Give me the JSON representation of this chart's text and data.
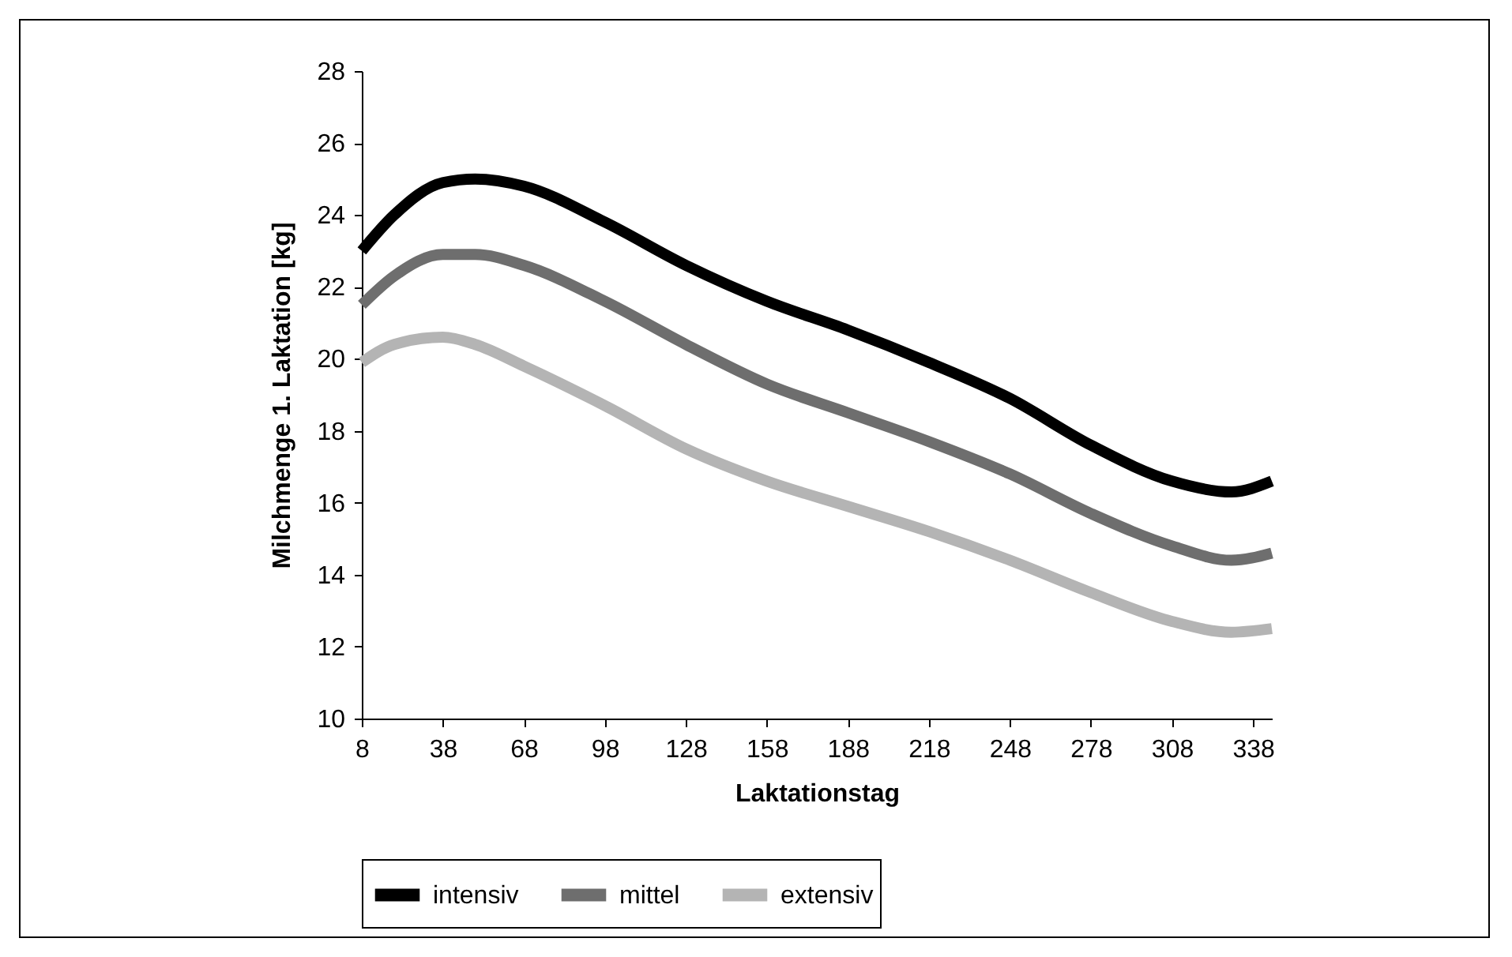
{
  "chart_data": {
    "type": "line",
    "xlabel": "Laktationstag",
    "ylabel": "Milchmenge 1. Laktation [kg]",
    "x": [
      8,
      20,
      38,
      50,
      68,
      98,
      128,
      158,
      188,
      218,
      248,
      278,
      308,
      330,
      345
    ],
    "series": [
      {
        "name": "intensiv",
        "color": "#000000",
        "values": [
          23.0,
          24.0,
          24.9,
          25.0,
          24.8,
          23.8,
          22.6,
          21.6,
          20.8,
          19.9,
          18.9,
          17.6,
          16.6,
          16.3,
          16.6
        ]
      },
      {
        "name": "mittel",
        "color": "#6e6e6e",
        "values": [
          21.5,
          22.3,
          22.9,
          22.9,
          22.6,
          21.6,
          20.4,
          19.3,
          18.5,
          17.7,
          16.8,
          15.7,
          14.8,
          14.4,
          14.6
        ]
      },
      {
        "name": "extensiv",
        "color": "#b4b4b4",
        "values": [
          19.9,
          20.4,
          20.6,
          20.4,
          19.8,
          18.7,
          17.5,
          16.6,
          15.9,
          15.2,
          14.4,
          13.5,
          12.7,
          12.4,
          12.5
        ]
      }
    ],
    "xlim": [
      8,
      345
    ],
    "xticks": [
      8,
      38,
      68,
      98,
      128,
      158,
      188,
      218,
      248,
      278,
      308,
      338
    ],
    "ylim": [
      10,
      28
    ],
    "yticks": [
      10,
      12,
      14,
      16,
      18,
      20,
      22,
      24,
      26,
      28
    ],
    "grid": false,
    "legend": "bottom"
  }
}
